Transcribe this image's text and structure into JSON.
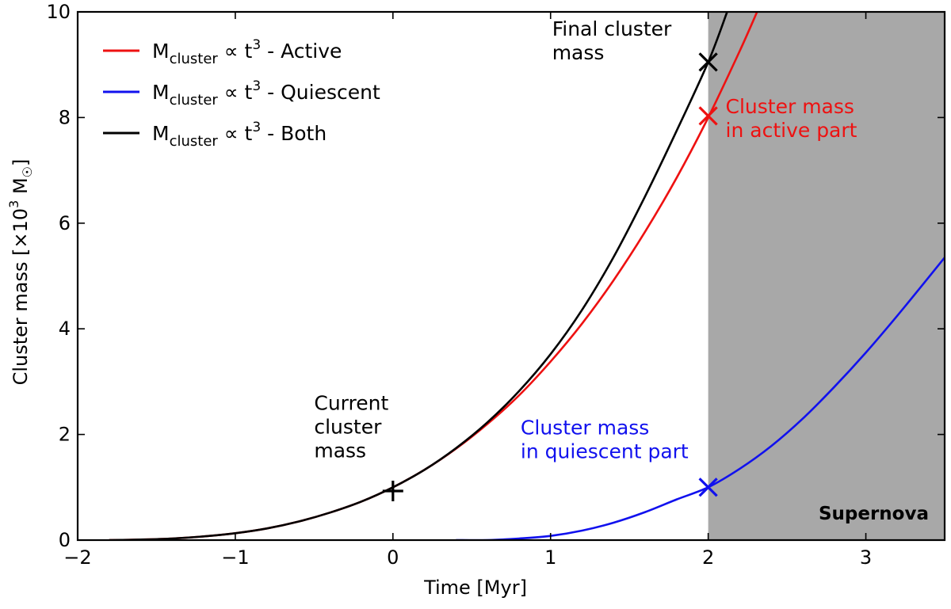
{
  "chart_data": {
    "type": "line",
    "xlabel": "Time [Myr]",
    "ylabel": "Cluster mass [×10³ M☉]",
    "ylabel_parts": {
      "prefix": "Cluster mass [×10",
      "exp": "3",
      "unit": " M",
      "sun": "☉",
      "suffix": "]"
    },
    "xlim": [
      -2,
      3.5
    ],
    "ylim": [
      0,
      10
    ],
    "xticks": [
      -2,
      -1,
      0,
      1,
      2,
      3
    ],
    "xtick_labels": [
      "−2",
      "−1",
      "0",
      "1",
      "2",
      "3"
    ],
    "yticks": [
      0,
      2,
      4,
      6,
      8,
      10
    ],
    "ytick_labels": [
      "0",
      "2",
      "4",
      "6",
      "8",
      "10"
    ],
    "shaded_region": {
      "x_start": 2.0,
      "x_end": 3.5,
      "color": "#a8a8a8",
      "label": "Supernova"
    },
    "series": [
      {
        "name": "M_cluster ∝ t³ - Active",
        "legend": {
          "m": "M",
          "sub": "cluster",
          "prop": " ∝ t",
          "exp": "3",
          "rest": " - Active"
        },
        "color": "#ee1111",
        "x": [
          -1.8,
          -1.6,
          -1.4,
          -1.2,
          -1.0,
          -0.8,
          -0.6,
          -0.4,
          -0.2,
          0.0,
          0.2,
          0.4,
          0.6,
          0.8,
          1.0,
          1.2,
          1.4,
          1.6,
          1.8,
          2.0,
          2.2,
          2.31
        ],
        "values": [
          0.0,
          0.01,
          0.03,
          0.07,
          0.13,
          0.22,
          0.35,
          0.52,
          0.73,
          1.0,
          1.33,
          1.73,
          2.2,
          2.74,
          3.38,
          4.1,
          4.92,
          5.84,
          6.86,
          8.0,
          9.26,
          10.0
        ]
      },
      {
        "name": "M_cluster ∝ t³ - Quiescent",
        "legend": {
          "m": "M",
          "sub": "cluster",
          "prop": " ∝ t",
          "exp": "3",
          "rest": " - Quiescent"
        },
        "color": "#1111ee",
        "x": [
          0.4,
          0.6,
          0.8,
          1.0,
          1.2,
          1.4,
          1.6,
          1.8,
          2.0,
          2.2,
          2.4,
          2.6,
          2.8,
          3.0,
          3.2,
          3.4,
          3.5
        ],
        "values": [
          0.0,
          0.0,
          0.03,
          0.08,
          0.18,
          0.33,
          0.53,
          0.77,
          1.0,
          1.35,
          1.78,
          2.3,
          2.9,
          3.55,
          4.25,
          4.98,
          5.35
        ]
      },
      {
        "name": "M_cluster ∝ t³ - Both",
        "legend": {
          "m": "M",
          "sub": "cluster",
          "prop": " ∝ t",
          "exp": "3",
          "rest": " - Both"
        },
        "color": "#000000",
        "x": [
          -1.8,
          -1.6,
          -1.4,
          -1.2,
          -1.0,
          -0.8,
          -0.6,
          -0.4,
          -0.2,
          0.0,
          0.2,
          0.4,
          0.6,
          0.8,
          1.0,
          1.2,
          1.4,
          1.6,
          1.8,
          2.0,
          2.12
        ],
        "values": [
          0.0,
          0.01,
          0.03,
          0.07,
          0.13,
          0.22,
          0.35,
          0.52,
          0.73,
          1.0,
          1.33,
          1.74,
          2.23,
          2.82,
          3.52,
          4.36,
          5.36,
          6.51,
          7.75,
          9.05,
          10.0
        ]
      }
    ],
    "markers": [
      {
        "name": "current-mass-marker",
        "x": 0.0,
        "y": 0.93,
        "shape": "plus",
        "color": "#000000"
      },
      {
        "name": "final-mass-marker",
        "x": 2.0,
        "y": 9.05,
        "shape": "x",
        "color": "#000000"
      },
      {
        "name": "active-mass-marker",
        "x": 2.0,
        "y": 8.03,
        "shape": "x",
        "color": "#ee1111"
      },
      {
        "name": "quiescent-mass-marker",
        "x": 2.0,
        "y": 1.0,
        "shape": "x",
        "color": "#1111ee"
      }
    ],
    "annotations": [
      {
        "name": "current-mass-annotation",
        "lines": [
          "Current",
          "cluster",
          "mass"
        ],
        "x": -0.5,
        "y": 2.47,
        "color": "#000000",
        "align": "start"
      },
      {
        "name": "final-mass-annotation",
        "lines": [
          "Final cluster",
          "mass"
        ],
        "x": 1.01,
        "y": 9.55,
        "color": "#000000",
        "align": "start"
      },
      {
        "name": "active-part-annotation",
        "lines": [
          "Cluster mass",
          "in active part"
        ],
        "x": 2.11,
        "y": 8.08,
        "color": "#ee1111",
        "align": "start"
      },
      {
        "name": "quiescent-part-annotation",
        "lines": [
          "Cluster mass",
          "in quiescent part"
        ],
        "x": 0.81,
        "y": 2.0,
        "color": "#1111ee",
        "align": "start"
      }
    ]
  }
}
